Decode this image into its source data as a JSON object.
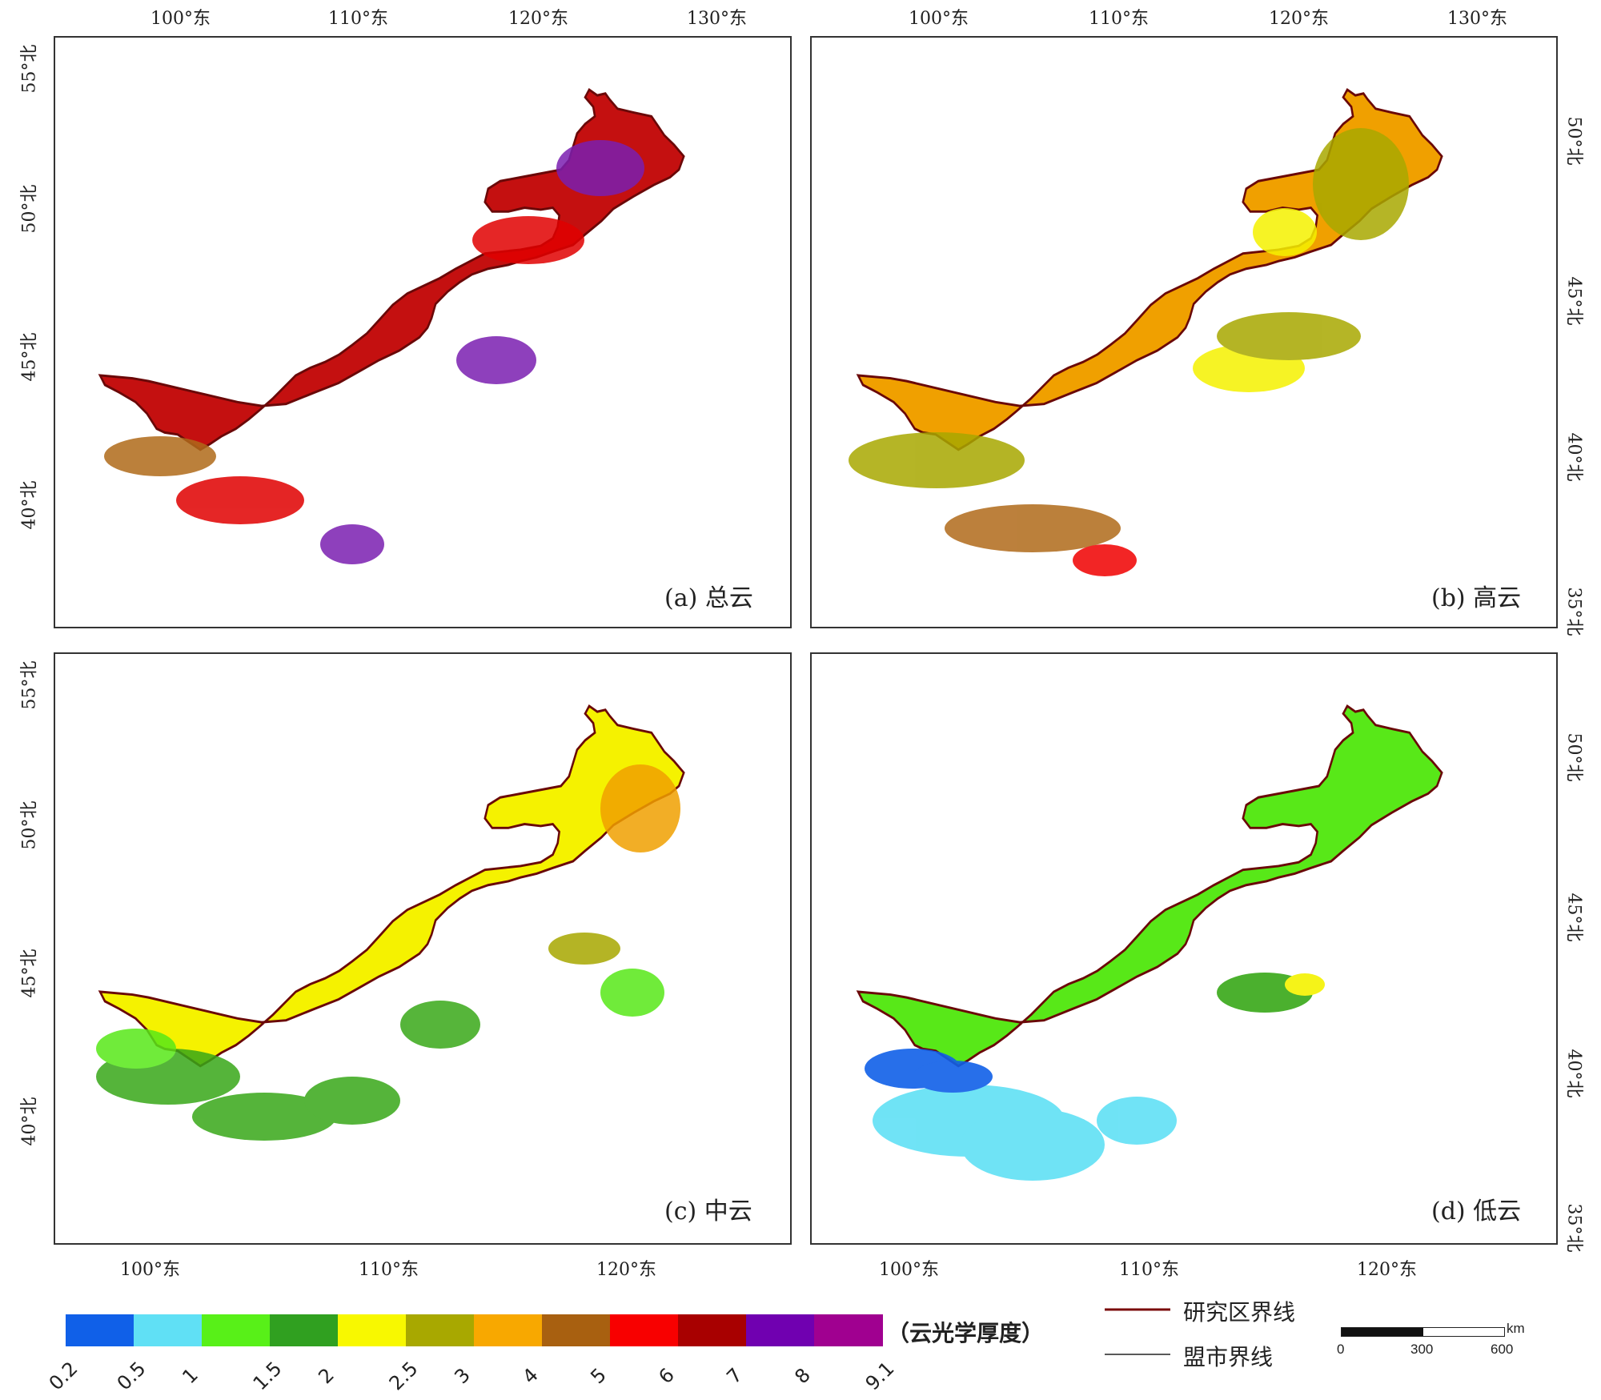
{
  "panels": [
    {
      "id": "a",
      "title": "(a) 总云",
      "fill": "#c41010",
      "accents": [
        "#e00000",
        "#7a1fb0",
        "#b06a1a"
      ]
    },
    {
      "id": "b",
      "title": "(b) 高云",
      "fill": "#f0a000",
      "accents": [
        "#a8a800",
        "#f5f200",
        "#b06a1a",
        "#f00000"
      ]
    },
    {
      "id": "c",
      "title": "(c) 中云",
      "fill": "#f5f200",
      "accents": [
        "#38a818",
        "#a8a800",
        "#f0a000",
        "#58e818"
      ]
    },
    {
      "id": "d",
      "title": "(d) 低云",
      "fill": "#58e818",
      "accents": [
        "#60e0f5",
        "#1060e8",
        "#38a818",
        "#f5f200"
      ]
    }
  ],
  "axes": {
    "top_lon_labels": [
      "100°东",
      "110°东",
      "120°东",
      "130°东"
    ],
    "bottom_lon_labels": [
      "100°东",
      "110°东",
      "120°东"
    ],
    "left_lat_labels": [
      "55°北",
      "50°北",
      "45°北",
      "40°北"
    ],
    "right_lat_labels": [
      "50°北",
      "45°北",
      "40°北",
      "35°北"
    ]
  },
  "colorbar": {
    "title": "（云光学厚度）",
    "colors": [
      "#1060e8",
      "#60e0f5",
      "#58f018",
      "#30a020",
      "#f8f800",
      "#a8a800",
      "#f8a800",
      "#a86010",
      "#f80000",
      "#a80000",
      "#7000b0",
      "#a00090"
    ],
    "labels": [
      "0.2",
      "0.5",
      "1",
      "1.5",
      "2",
      "2.5",
      "3",
      "4",
      "5",
      "6",
      "7",
      "8",
      "9.1"
    ]
  },
  "legend": {
    "study_area_boundary": "研究区界线",
    "city_boundary": "盟市界线",
    "study_area_color": "#7a0a0a",
    "city_color": "#222222"
  },
  "scalebar": {
    "labels": [
      "0",
      "300",
      "600"
    ],
    "unit": "km"
  }
}
